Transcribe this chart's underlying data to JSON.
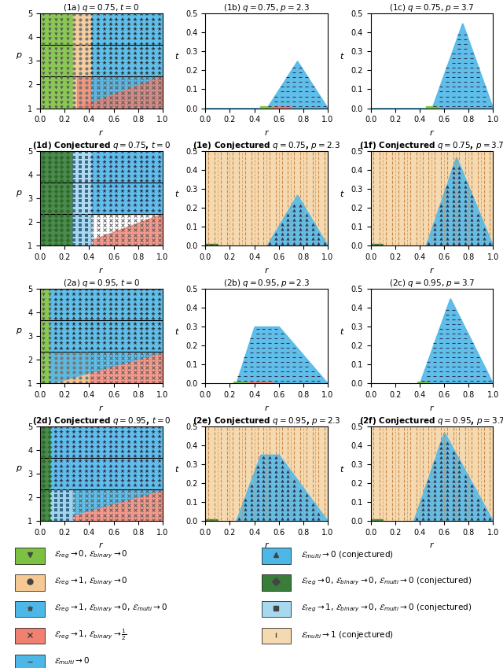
{
  "titles": [
    "(1a) $q=0.75$, $t=0$",
    "(1b) $q=0.75$, $p=2.3$",
    "(1c) $q=0.75$, $p=3.7$",
    "(1d) Conjectured $q=0.75$, $t=0$",
    "(1e) Conjectured $q=0.75$, $p=2.3$",
    "(1f) Conjectured $q=0.75$, $p=3.7$",
    "(2a) $q=0.95$, $t=0$",
    "(2b) $q=0.95$, $p=2.3$",
    "(2c) $q=0.95$, $p=3.7$",
    "(2d) Conjectured $q=0.95$, $t=0$",
    "(2e) Conjectured $q=0.95$, $p=2.3$",
    "(2f) Conjectured $q=0.95$, $p=3.7$"
  ],
  "colors": {
    "green": "#7dc142",
    "tan": "#f5c994",
    "blue": "#4db8e8",
    "red": "#f08070",
    "dark_green": "#3a7d3a",
    "light_blue": "#a8d8f0",
    "light_tan": "#f5d9b0",
    "white": "#ffffff"
  },
  "q075_hlines": [
    2.33,
    3.67
  ],
  "q095_hlines": [
    2.33,
    3.67
  ],
  "figsize": [
    6.4,
    8.49
  ],
  "dpi": 100
}
